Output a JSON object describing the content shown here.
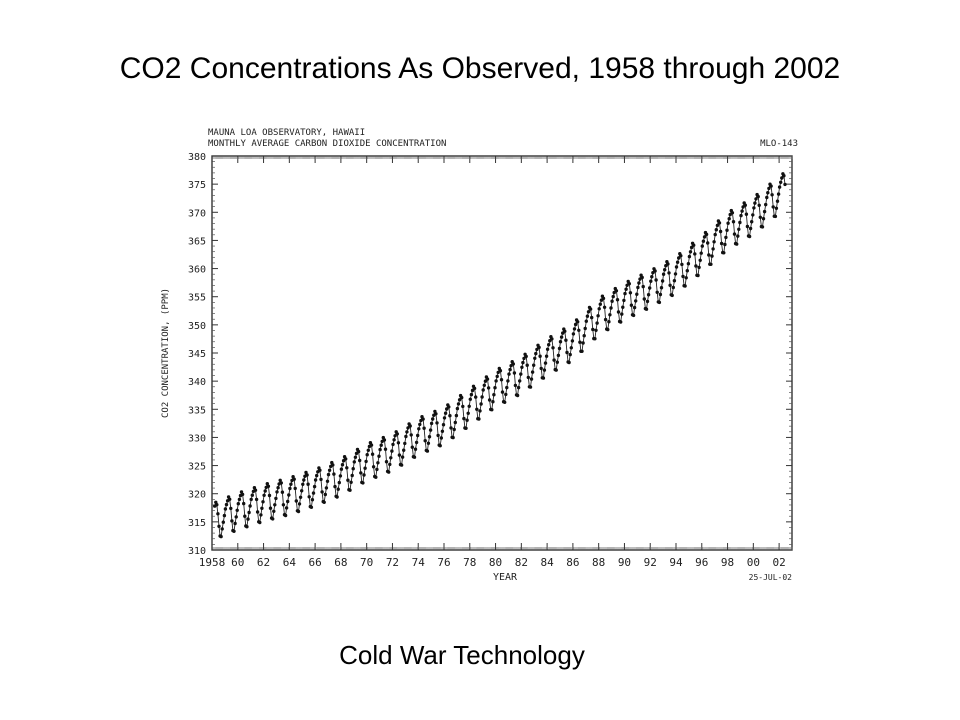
{
  "slide": {
    "title": "CO2 Concentrations As Observed, 1958 through 2002",
    "caption": "Cold War Technology"
  },
  "chart_data": {
    "type": "line",
    "header_line_1": "MAUNA LOA OBSERVATORY, HAWAII",
    "header_line_2": "MONTHLY AVERAGE CARBON DIOXIDE CONCENTRATION",
    "figure_id": "MLO-143",
    "date_stamp": "25-JUL-02",
    "xlabel": "YEAR",
    "ylabel": "CO2 CONCENTRATION, (PPM)",
    "xlim": [
      1958,
      2003
    ],
    "ylim": [
      310,
      380
    ],
    "x_tick_labels": [
      "1958",
      "60",
      "62",
      "64",
      "66",
      "68",
      "70",
      "72",
      "74",
      "76",
      "78",
      "80",
      "82",
      "84",
      "86",
      "88",
      "90",
      "92",
      "94",
      "96",
      "98",
      "00",
      "02"
    ],
    "y_tick_values": [
      310,
      315,
      320,
      325,
      330,
      335,
      340,
      345,
      350,
      355,
      360,
      365,
      370,
      375,
      380
    ],
    "grid": false,
    "marker": "filled-dot",
    "series": [
      {
        "points_description": "Monthly averages, March 1958 – June 2002",
        "annual_mean_ppm": [
          {
            "year": 1958,
            "value": 315.0
          },
          {
            "year": 1960,
            "value": 316.9
          },
          {
            "year": 1962,
            "value": 318.4
          },
          {
            "year": 1964,
            "value": 319.6
          },
          {
            "year": 1966,
            "value": 321.1
          },
          {
            "year": 1968,
            "value": 323.0
          },
          {
            "year": 1970,
            "value": 325.6
          },
          {
            "year": 1972,
            "value": 327.4
          },
          {
            "year": 1974,
            "value": 330.2
          },
          {
            "year": 1976,
            "value": 332.1
          },
          {
            "year": 1978,
            "value": 335.4
          },
          {
            "year": 1980,
            "value": 338.7
          },
          {
            "year": 1982,
            "value": 341.1
          },
          {
            "year": 1984,
            "value": 344.3
          },
          {
            "year": 1986,
            "value": 347.0
          },
          {
            "year": 1988,
            "value": 351.5
          },
          {
            "year": 1990,
            "value": 354.2
          },
          {
            "year": 1992,
            "value": 356.4
          },
          {
            "year": 1994,
            "value": 358.9
          },
          {
            "year": 1996,
            "value": 362.6
          },
          {
            "year": 1998,
            "value": 366.7
          },
          {
            "year": 2000,
            "value": 369.4
          },
          {
            "year": 2002,
            "value": 373.1
          }
        ],
        "seasonal_cycle_offset_ppm": [
          1.3,
          2.0,
          2.6,
          3.2,
          2.7,
          1.0,
          -1.3,
          -3.1,
          -3.3,
          -2.0,
          -0.9,
          0.2
        ]
      }
    ]
  }
}
